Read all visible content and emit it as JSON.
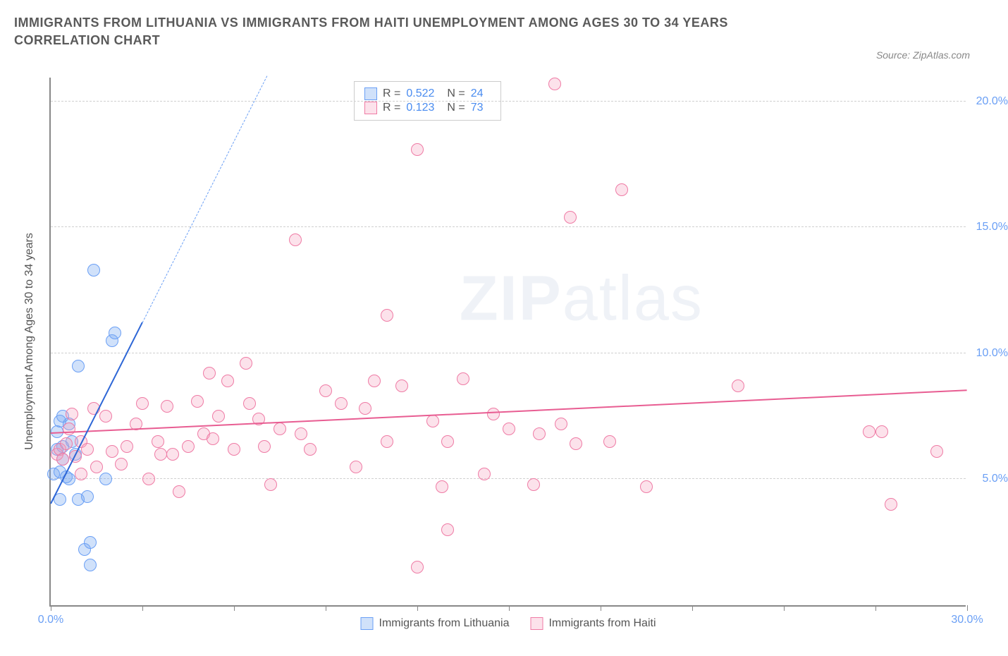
{
  "title": "IMMIGRANTS FROM LITHUANIA VS IMMIGRANTS FROM HAITI UNEMPLOYMENT AMONG AGES 30 TO 34 YEARS CORRELATION CHART",
  "source": "Source: ZipAtlas.com",
  "watermark_a": "ZIP",
  "watermark_b": "atlas",
  "chart": {
    "type": "scatter",
    "background_color": "#ffffff",
    "grid_color": "#d0d0d0",
    "axis_color": "#888888",
    "ylabel": "Unemployment Among Ages 30 to 34 years",
    "label_fontsize": 16,
    "tick_color": "#6a9ff5",
    "xlim": [
      0,
      30
    ],
    "ylim": [
      0,
      21
    ],
    "yticks": [
      5,
      10,
      15,
      20
    ],
    "ytick_labels": [
      "5.0%",
      "10.0%",
      "15.0%",
      "20.0%"
    ],
    "xticks": [
      0,
      3,
      6,
      9,
      12,
      15,
      18,
      21,
      24,
      27,
      30
    ],
    "xtick_labels_shown": {
      "0": "0.0%",
      "30": "30.0%"
    },
    "marker_radius": 9,
    "marker_border_width": 1.5,
    "series": [
      {
        "name": "Immigrants from Lithuania",
        "color_fill": "rgba(120,170,240,0.35)",
        "color_border": "#6a9ff5",
        "R": "0.522",
        "N": "24",
        "trend": {
          "x1": 0,
          "y1": 4.0,
          "x2": 3.0,
          "y2": 11.2,
          "extend_to_x": 7.5,
          "solid_color": "#2d66d6",
          "dash_color": "#6a9ff5",
          "width": 2
        },
        "points": [
          [
            0.3,
            4.2
          ],
          [
            0.1,
            5.2
          ],
          [
            0.3,
            5.3
          ],
          [
            0.5,
            5.1
          ],
          [
            0.6,
            5.0
          ],
          [
            0.9,
            4.2
          ],
          [
            1.2,
            4.3
          ],
          [
            0.2,
            6.2
          ],
          [
            0.4,
            6.3
          ],
          [
            0.2,
            6.9
          ],
          [
            0.3,
            7.3
          ],
          [
            0.4,
            7.5
          ],
          [
            0.6,
            7.2
          ],
          [
            0.8,
            6.0
          ],
          [
            1.1,
            2.2
          ],
          [
            1.3,
            2.5
          ],
          [
            1.3,
            1.6
          ],
          [
            1.8,
            5.0
          ],
          [
            0.9,
            9.5
          ],
          [
            2.0,
            10.5
          ],
          [
            2.1,
            10.8
          ],
          [
            1.4,
            13.3
          ],
          [
            0.4,
            5.8
          ],
          [
            0.7,
            6.5
          ]
        ]
      },
      {
        "name": "Immigrants from Haiti",
        "color_fill": "rgba(245,160,190,0.30)",
        "color_border": "#ef7ba5",
        "R": "0.123",
        "N": "73",
        "trend": {
          "x1": 0,
          "y1": 6.8,
          "x2": 30,
          "y2": 8.5,
          "solid_color": "#e85d92",
          "width": 2
        },
        "points": [
          [
            0.2,
            6.0
          ],
          [
            0.3,
            6.2
          ],
          [
            0.4,
            5.8
          ],
          [
            0.5,
            6.4
          ],
          [
            0.6,
            7.0
          ],
          [
            0.7,
            7.6
          ],
          [
            0.8,
            5.9
          ],
          [
            1.0,
            6.5
          ],
          [
            1.2,
            6.2
          ],
          [
            1.4,
            7.8
          ],
          [
            1.5,
            5.5
          ],
          [
            1.8,
            7.5
          ],
          [
            2.0,
            6.1
          ],
          [
            2.3,
            5.6
          ],
          [
            2.5,
            6.3
          ],
          [
            2.8,
            7.2
          ],
          [
            3.0,
            8.0
          ],
          [
            3.2,
            5.0
          ],
          [
            3.5,
            6.5
          ],
          [
            3.8,
            7.9
          ],
          [
            4.0,
            6.0
          ],
          [
            4.2,
            4.5
          ],
          [
            4.5,
            6.3
          ],
          [
            4.8,
            8.1
          ],
          [
            5.0,
            6.8
          ],
          [
            5.2,
            9.2
          ],
          [
            5.3,
            6.6
          ],
          [
            5.5,
            7.5
          ],
          [
            5.8,
            8.9
          ],
          [
            6.0,
            6.2
          ],
          [
            6.4,
            9.6
          ],
          [
            6.5,
            8.0
          ],
          [
            7.0,
            6.3
          ],
          [
            7.2,
            4.8
          ],
          [
            7.5,
            7.0
          ],
          [
            8.0,
            14.5
          ],
          [
            8.2,
            6.8
          ],
          [
            8.5,
            6.2
          ],
          [
            9.0,
            8.5
          ],
          [
            9.5,
            8.0
          ],
          [
            10.0,
            5.5
          ],
          [
            10.3,
            7.8
          ],
          [
            10.6,
            8.9
          ],
          [
            11.0,
            11.5
          ],
          [
            11.0,
            6.5
          ],
          [
            11.5,
            8.7
          ],
          [
            12.0,
            18.1
          ],
          [
            12.0,
            1.5
          ],
          [
            12.5,
            7.3
          ],
          [
            12.8,
            4.7
          ],
          [
            13.0,
            3.0
          ],
          [
            13.0,
            6.5
          ],
          [
            13.5,
            9.0
          ],
          [
            14.2,
            5.2
          ],
          [
            14.5,
            7.6
          ],
          [
            15.0,
            7.0
          ],
          [
            15.8,
            4.8
          ],
          [
            16.0,
            6.8
          ],
          [
            16.5,
            20.7
          ],
          [
            16.7,
            7.2
          ],
          [
            17.0,
            15.4
          ],
          [
            17.2,
            6.4
          ],
          [
            18.3,
            6.5
          ],
          [
            18.7,
            16.5
          ],
          [
            19.5,
            4.7
          ],
          [
            22.5,
            8.7
          ],
          [
            26.8,
            6.9
          ],
          [
            27.2,
            6.9
          ],
          [
            27.5,
            4.0
          ],
          [
            29.0,
            6.1
          ],
          [
            3.6,
            6.0
          ],
          [
            1.0,
            5.2
          ],
          [
            6.8,
            7.4
          ]
        ]
      }
    ],
    "stats_labels": {
      "R": "R =",
      "N": "N ="
    }
  },
  "legend": {
    "series1": "Immigrants from Lithuania",
    "series2": "Immigrants from Haiti"
  }
}
